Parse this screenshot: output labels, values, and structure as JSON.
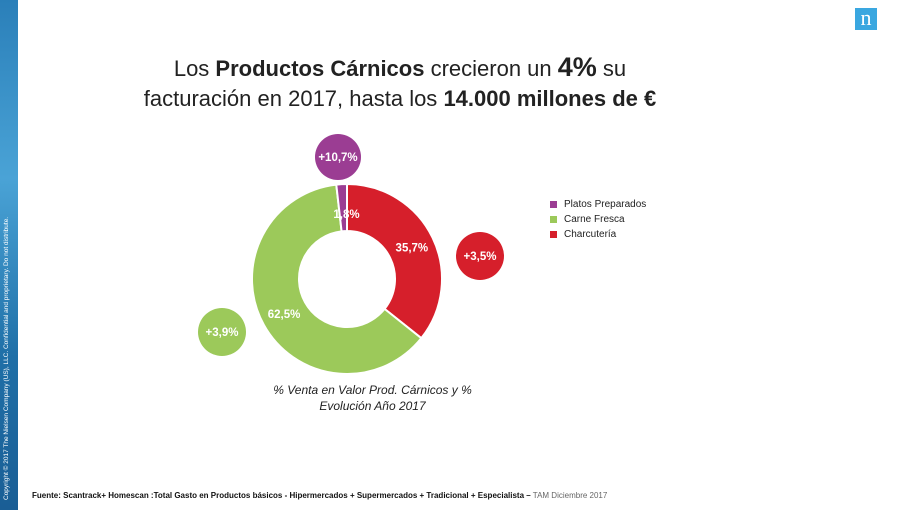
{
  "header": {
    "title_line1": [
      "Los ",
      "Productos Cárnicos",
      " crecieron un ",
      "4%",
      " su"
    ],
    "title_line2": [
      "facturación en 2017, hasta los ",
      "14.000 millones de €"
    ]
  },
  "logo_letter": "n",
  "sidebar_text": "Copyright © 2017 The Nielsen Company (US), LLC. Confidential and proprietary. Do not distribute.",
  "chart_data": {
    "type": "pie",
    "style": "donut",
    "slices": [
      {
        "name": "Platos Preparados",
        "value": 1.8,
        "label": "1,8%",
        "growth": "+10,7%",
        "color": "#9b3d93"
      },
      {
        "name": "Carne Fresca",
        "value": 62.5,
        "label": "62,5%",
        "growth": "+3,9%",
        "color": "#9cc95a"
      },
      {
        "name": "Charcutería",
        "value": 35.7,
        "label": "35,7%",
        "growth": "+3,5%",
        "color": "#d61f2b"
      }
    ],
    "title": "% Venta en Valor Prod. Cárnicos y % Evolución Año 2017",
    "legend_position": "right"
  },
  "footer": {
    "source": "Fuente: Scantrack+ Homescan :Total Gasto en Productos básicos  - Hipermercados + Supermercados + Tradicional + Especialista –",
    "period": "TAM Diciembre 2017"
  }
}
